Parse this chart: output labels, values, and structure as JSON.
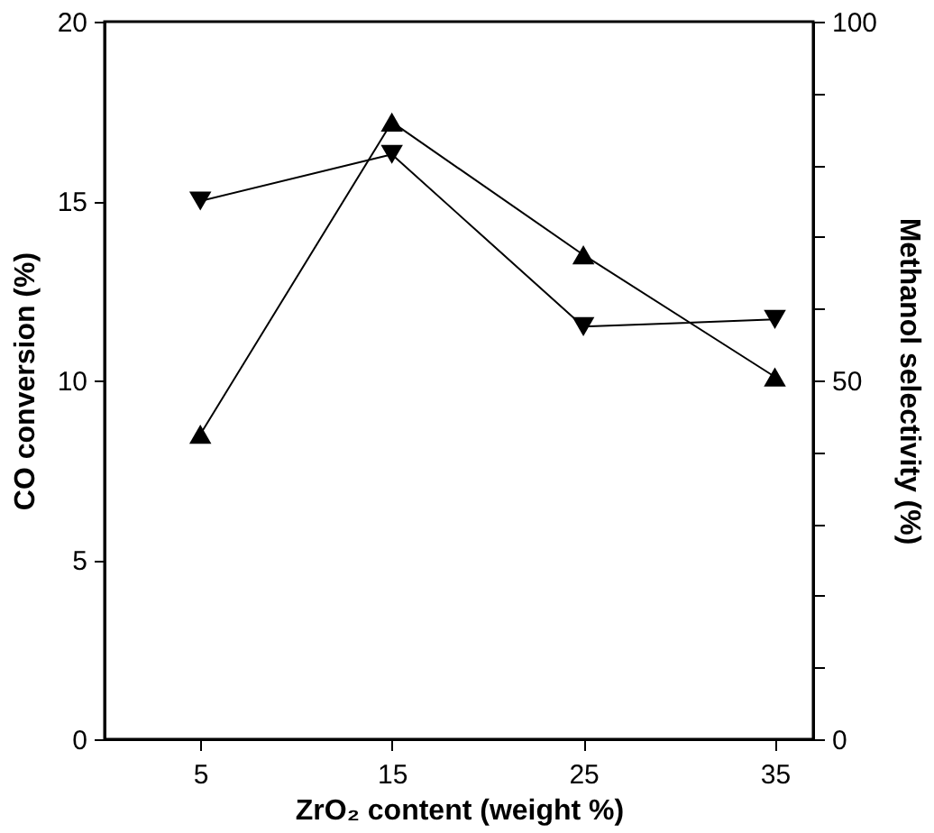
{
  "chart_data": {
    "type": "line",
    "xlabel": "ZrO₂ content (weight %)",
    "ylabel": "CO conversion (%)",
    "y2label": "Methanol selectivity (%)",
    "x": [
      5,
      15,
      25,
      35
    ],
    "xlim": [
      0,
      37
    ],
    "xticks": [
      5,
      15,
      25,
      35
    ],
    "ylim": [
      0,
      20
    ],
    "yticks": [
      0,
      5,
      10,
      15,
      20
    ],
    "y2lim": [
      0,
      100
    ],
    "y2ticks": [
      0,
      {
        "value": 10,
        "label": null
      },
      {
        "value": 20,
        "label": null
      },
      {
        "value": 30,
        "label": null
      },
      {
        "value": 40,
        "label": null
      },
      50,
      {
        "value": 60,
        "label": null
      },
      {
        "value": 70,
        "label": null
      },
      {
        "value": 80,
        "label": null
      },
      {
        "value": 90,
        "label": null
      },
      100
    ],
    "series": [
      {
        "color": "#000000",
        "marker": "triangle",
        "values": [
          8.5,
          17.2,
          13.5,
          10.1
        ]
      },
      {
        "color": "#000000",
        "marker": "triangle-down",
        "axis": "y2",
        "values": [
          75,
          81.5,
          57.5,
          58.5
        ]
      }
    ],
    "grid": false,
    "line_style": "solid"
  }
}
